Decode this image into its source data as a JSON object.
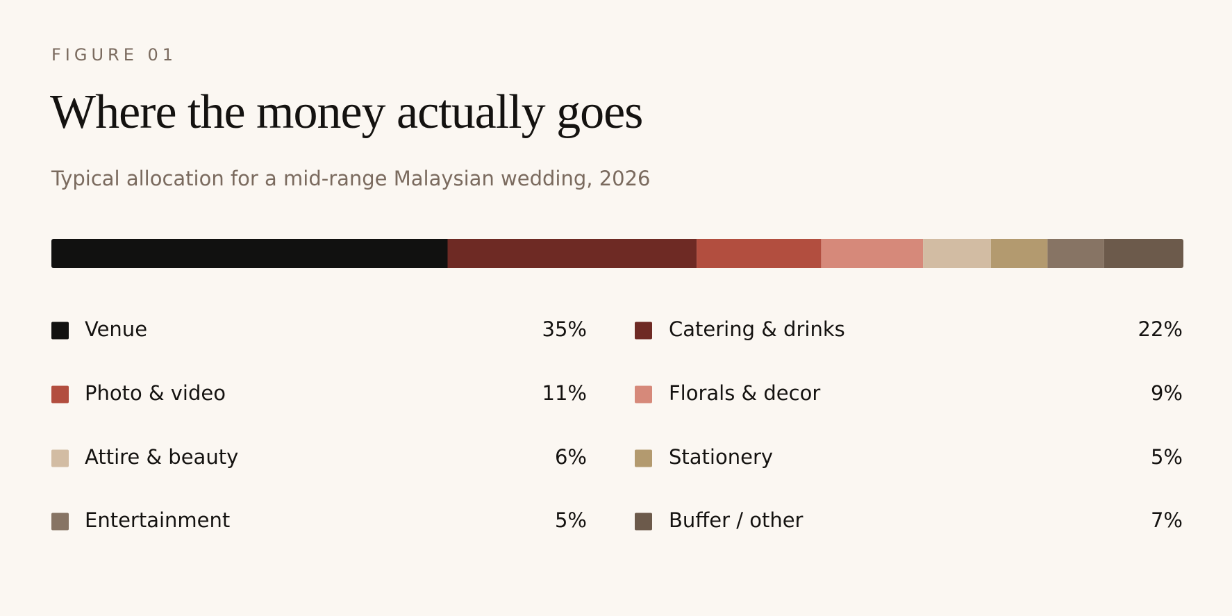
{
  "chart_data": {
    "type": "bar",
    "stacked": true,
    "orientation": "horizontal",
    "label": "FIGURE 01",
    "title": "Where the money actually goes",
    "subtitle": "Typical allocation for a mid-range Malaysian wedding, 2026",
    "xlim": [
      0,
      100
    ],
    "series": [
      {
        "name": "Venue",
        "color": "#111110",
        "values": [
          35
        ],
        "value_labels": [
          "35%"
        ]
      },
      {
        "name": "Catering & drinks",
        "color": "#6e2a24",
        "values": [
          22
        ],
        "value_labels": [
          "22%"
        ]
      },
      {
        "name": "Photo & video",
        "color": "#b24e3f",
        "values": [
          11
        ],
        "value_labels": [
          "11%"
        ]
      },
      {
        "name": "Florals & decor",
        "color": "#d6897a",
        "values": [
          9
        ],
        "value_labels": [
          "9%"
        ]
      },
      {
        "name": "Attire & beauty",
        "color": "#d2bca3",
        "values": [
          6
        ],
        "value_labels": [
          "6%"
        ]
      },
      {
        "name": "Stationery",
        "color": "#b39a6f",
        "values": [
          5
        ],
        "value_labels": [
          "5%"
        ]
      },
      {
        "name": "Entertainment",
        "color": "#877464",
        "values": [
          5
        ],
        "value_labels": [
          "5%"
        ]
      },
      {
        "name": "Buffer / other",
        "color": "#6c5a4b",
        "values": [
          7
        ],
        "value_labels": [
          "7%"
        ]
      }
    ]
  }
}
